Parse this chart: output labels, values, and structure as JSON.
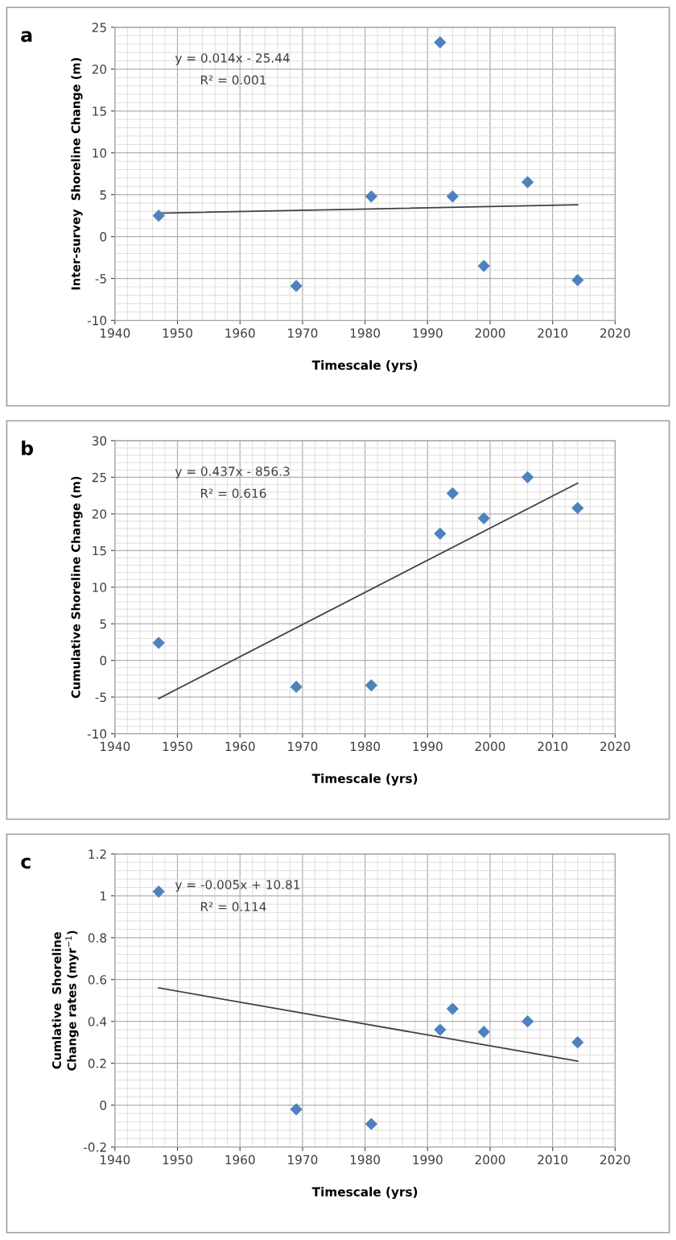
{
  "chart_data": [
    {
      "type": "scatter",
      "title": "a",
      "xlabel": "Timescale (yrs)",
      "ylabel": "Inter-survey  Shoreline Change (m)",
      "xlim": [
        1940,
        2020
      ],
      "xticks": [
        1940,
        1950,
        1960,
        1970,
        1980,
        1990,
        2000,
        2010,
        2020
      ],
      "ylim": [
        -10,
        25
      ],
      "yticks": [
        -10,
        -5,
        0,
        5,
        10,
        15,
        20,
        25
      ],
      "grid": true,
      "marker": "diamond",
      "annotations": [
        "y = 0.014x - 25.44",
        "R² = 0.001"
      ],
      "series": [
        {
          "color": "#4f81bd",
          "x": [
            1947,
            1969,
            1981,
            1992,
            1994,
            1999,
            2006,
            2014
          ],
          "values": [
            2.5,
            -5.9,
            4.8,
            23.2,
            4.8,
            -3.5,
            6.5,
            -5.2
          ]
        },
        {
          "type": "line",
          "marker": "none",
          "color": "#404040",
          "x": [
            1947,
            2014
          ],
          "values": [
            2.8,
            3.8
          ]
        }
      ]
    },
    {
      "type": "scatter",
      "title": "b",
      "xlabel": "Timescale (yrs)",
      "ylabel": "Cumulative Shoreline Change (m)",
      "xlim": [
        1940,
        2020
      ],
      "xticks": [
        1940,
        1950,
        1960,
        1970,
        1980,
        1990,
        2000,
        2010,
        2020
      ],
      "ylim": [
        -10,
        30
      ],
      "yticks": [
        -10,
        -5,
        0,
        5,
        10,
        15,
        20,
        25,
        30
      ],
      "grid": true,
      "marker": "diamond",
      "annotations": [
        "y = 0.437x - 856.3",
        "R² = 0.616"
      ],
      "series": [
        {
          "color": "#4f81bd",
          "x": [
            1947,
            1969,
            1981,
            1992,
            1994,
            1999,
            2006,
            2014
          ],
          "values": [
            2.4,
            -3.6,
            -3.4,
            17.3,
            22.8,
            19.4,
            25.0,
            20.8
          ]
        },
        {
          "type": "line",
          "marker": "none",
          "color": "#404040",
          "x": [
            1947,
            2014
          ],
          "values": [
            -5.2,
            24.2
          ]
        }
      ]
    },
    {
      "type": "scatter",
      "title": "c",
      "xlabel": "Timescale (yrs)",
      "ylabel": "Cumlative  Shoreline\nChange rates (myr$^{−1}$)",
      "xlim": [
        1940,
        2020
      ],
      "xticks": [
        1940,
        1950,
        1960,
        1970,
        1980,
        1990,
        2000,
        2010,
        2020
      ],
      "ylim": [
        -0.2,
        1.2
      ],
      "yticks": [
        {
          "value": -0.2,
          "label": "-0.2"
        },
        0,
        0.2,
        0.4,
        0.6,
        0.8,
        1,
        1.2
      ],
      "grid": true,
      "marker": "diamond",
      "annotations": [
        "y = -0.005x + 10.81",
        "R² = 0.114"
      ],
      "series": [
        {
          "color": "#4f81bd",
          "x": [
            1947,
            1969,
            1981,
            1992,
            1994,
            1999,
            2006,
            2014
          ],
          "values": [
            1.02,
            -0.02,
            -0.09,
            0.36,
            0.46,
            0.35,
            0.4,
            0.3
          ]
        },
        {
          "type": "line",
          "marker": "none",
          "color": "#404040",
          "x": [
            1947,
            2014
          ],
          "values": [
            0.56,
            0.21
          ]
        }
      ]
    }
  ]
}
